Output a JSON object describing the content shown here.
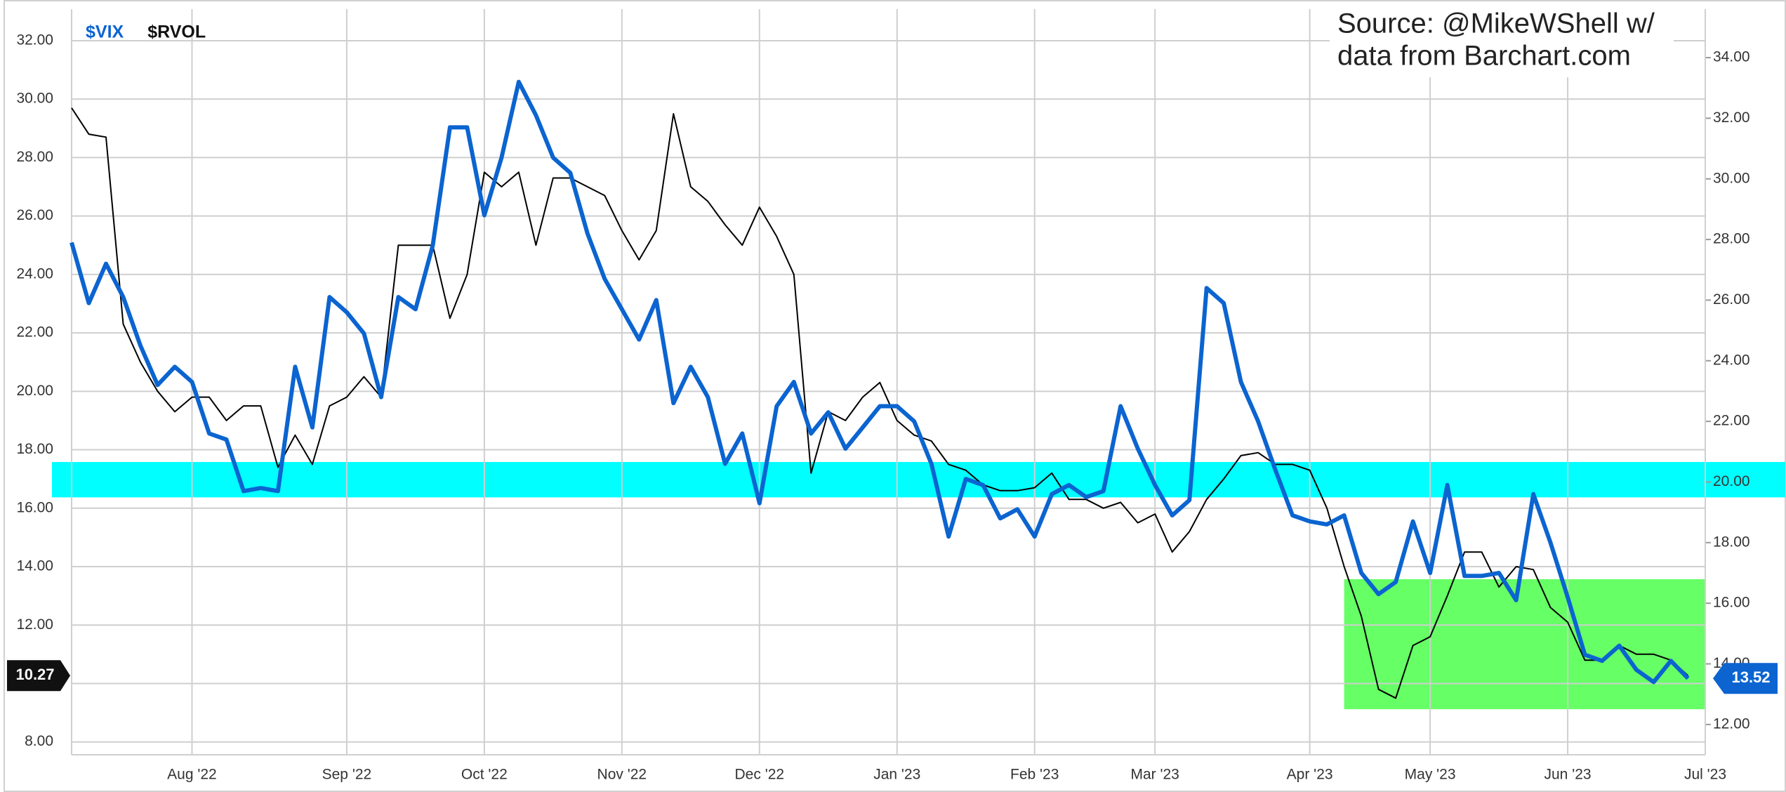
{
  "chart_data": {
    "type": "line",
    "source_lines": [
      "Source: @MikeWShell w/",
      "data from Barchart.com"
    ],
    "categories": [
      null,
      null,
      null,
      null,
      null,
      null,
      null,
      "Aug '22",
      null,
      null,
      null,
      null,
      null,
      null,
      null,
      null,
      "Sep '22",
      null,
      null,
      null,
      null,
      null,
      null,
      null,
      "Oct '22",
      null,
      null,
      null,
      null,
      null,
      null,
      null,
      "Nov '22",
      null,
      null,
      null,
      null,
      null,
      null,
      null,
      "Dec '22",
      null,
      null,
      null,
      null,
      null,
      null,
      null,
      "Jan '23",
      null,
      null,
      null,
      null,
      null,
      null,
      null,
      "Feb '23",
      null,
      null,
      null,
      null,
      null,
      null,
      "Mar '23",
      null,
      null,
      null,
      null,
      null,
      null,
      null,
      null,
      "Apr '23",
      null,
      null,
      null,
      null,
      null,
      null,
      "May '23",
      null,
      null,
      null,
      null,
      null,
      null,
      null,
      "Jun '23",
      null,
      null,
      null,
      null,
      null,
      null,
      null,
      "Jul '23"
    ],
    "series": [
      {
        "name": "$VIX",
        "color": "#0b64d0",
        "axis": "y2",
        "values": [
          27.9,
          25.9,
          27.2,
          26.1,
          24.5,
          23.2,
          23.8,
          23.3,
          21.6,
          21.4,
          19.7,
          19.8,
          19.7,
          23.8,
          21.8,
          26.1,
          25.6,
          24.9,
          22.8,
          26.1,
          25.7,
          27.8,
          31.7,
          31.7,
          28.8,
          30.7,
          33.2,
          32.1,
          30.7,
          30.2,
          28.2,
          26.7,
          25.7,
          24.7,
          26.0,
          22.6,
          23.8,
          22.8,
          20.6,
          21.6,
          19.3,
          22.5,
          23.3,
          21.6,
          22.3,
          21.1,
          21.8,
          22.5,
          22.5,
          22.0,
          20.6,
          18.2,
          20.1,
          19.9,
          18.8,
          19.1,
          18.2,
          19.6,
          19.9,
          19.5,
          19.7,
          22.5,
          21.1,
          19.9,
          18.9,
          19.4,
          26.4,
          25.9,
          23.3,
          22.0,
          20.4,
          18.9,
          18.7,
          18.6,
          18.9,
          17.0,
          16.3,
          16.7,
          18.7,
          17.0,
          19.9,
          16.9,
          16.9,
          17.0,
          16.1,
          19.6,
          18.0,
          16.2,
          14.3,
          14.1,
          14.6,
          13.8,
          13.4,
          14.1,
          13.52,
          null
        ]
      },
      {
        "name": "$RVOL",
        "color": "#000000",
        "values": [
          29.7,
          28.8,
          28.7,
          22.3,
          21.0,
          20.0,
          19.3,
          19.8,
          19.8,
          19.0,
          19.5,
          19.5,
          17.4,
          18.5,
          17.5,
          19.5,
          19.8,
          20.5,
          19.8,
          25.0,
          25.0,
          25.0,
          22.5,
          24.0,
          27.5,
          27.0,
          27.5,
          25.0,
          27.3,
          27.3,
          27.0,
          26.7,
          25.5,
          24.5,
          25.5,
          29.5,
          27.0,
          26.5,
          25.7,
          25.0,
          26.3,
          25.3,
          24.0,
          17.2,
          19.3,
          19.0,
          19.8,
          20.3,
          19.0,
          18.5,
          18.3,
          17.5,
          17.3,
          16.8,
          16.6,
          16.6,
          16.7,
          17.2,
          16.3,
          16.3,
          16.0,
          16.2,
          15.5,
          15.8,
          14.5,
          15.2,
          16.3,
          17.0,
          17.8,
          17.9,
          17.5,
          17.5,
          17.3,
          16.0,
          14.0,
          12.3,
          9.8,
          9.5,
          11.3,
          11.6,
          13.0,
          14.5,
          14.5,
          13.3,
          14.0,
          13.9,
          12.6,
          12.1,
          10.8,
          10.8,
          11.3,
          11.0,
          11.0,
          10.8,
          10.27,
          null
        ]
      }
    ],
    "ylim": [
      7.56,
      33.08
    ],
    "yticks": [
      {
        "value": 8,
        "label": "8.00"
      },
      {
        "value": 10,
        "label": "10.00"
      },
      {
        "value": 12,
        "label": "12.00"
      },
      {
        "value": 14,
        "label": "14.00"
      },
      {
        "value": 16,
        "label": "16.00"
      },
      {
        "value": 18,
        "label": "18.00"
      },
      {
        "value": 20,
        "label": "20.00"
      },
      {
        "value": 22,
        "label": "22.00"
      },
      {
        "value": 24,
        "label": "24.00"
      },
      {
        "value": 26,
        "label": "26.00"
      },
      {
        "value": 28,
        "label": "28.00"
      },
      {
        "value": 30,
        "label": "30.00"
      },
      {
        "value": 32,
        "label": "32.00"
      }
    ],
    "y2lim": [
      11.0,
      35.6
    ],
    "y2ticks": [
      {
        "value": 12,
        "label": "12.00"
      },
      {
        "value": 14,
        "label": "14.00"
      },
      {
        "value": 16,
        "label": "16.00"
      },
      {
        "value": 18,
        "label": "18.00"
      },
      {
        "value": 20,
        "label": "20.00"
      },
      {
        "value": 22,
        "label": "22.00"
      },
      {
        "value": 24,
        "label": "24.00"
      },
      {
        "value": 26,
        "label": "26.00"
      },
      {
        "value": 28,
        "label": "28.00"
      },
      {
        "value": 30,
        "label": "30.00"
      },
      {
        "value": 32,
        "label": "32.00"
      },
      {
        "value": 34,
        "label": "34.00"
      }
    ],
    "grid": true,
    "highlights": [
      {
        "color": "#00ffff",
        "y": [
          16.37,
          17.58
        ]
      },
      {
        "color": "#66ff66",
        "y": [
          9.12,
          13.57
        ],
        "x": [
          74,
          95
        ]
      }
    ]
  }
}
